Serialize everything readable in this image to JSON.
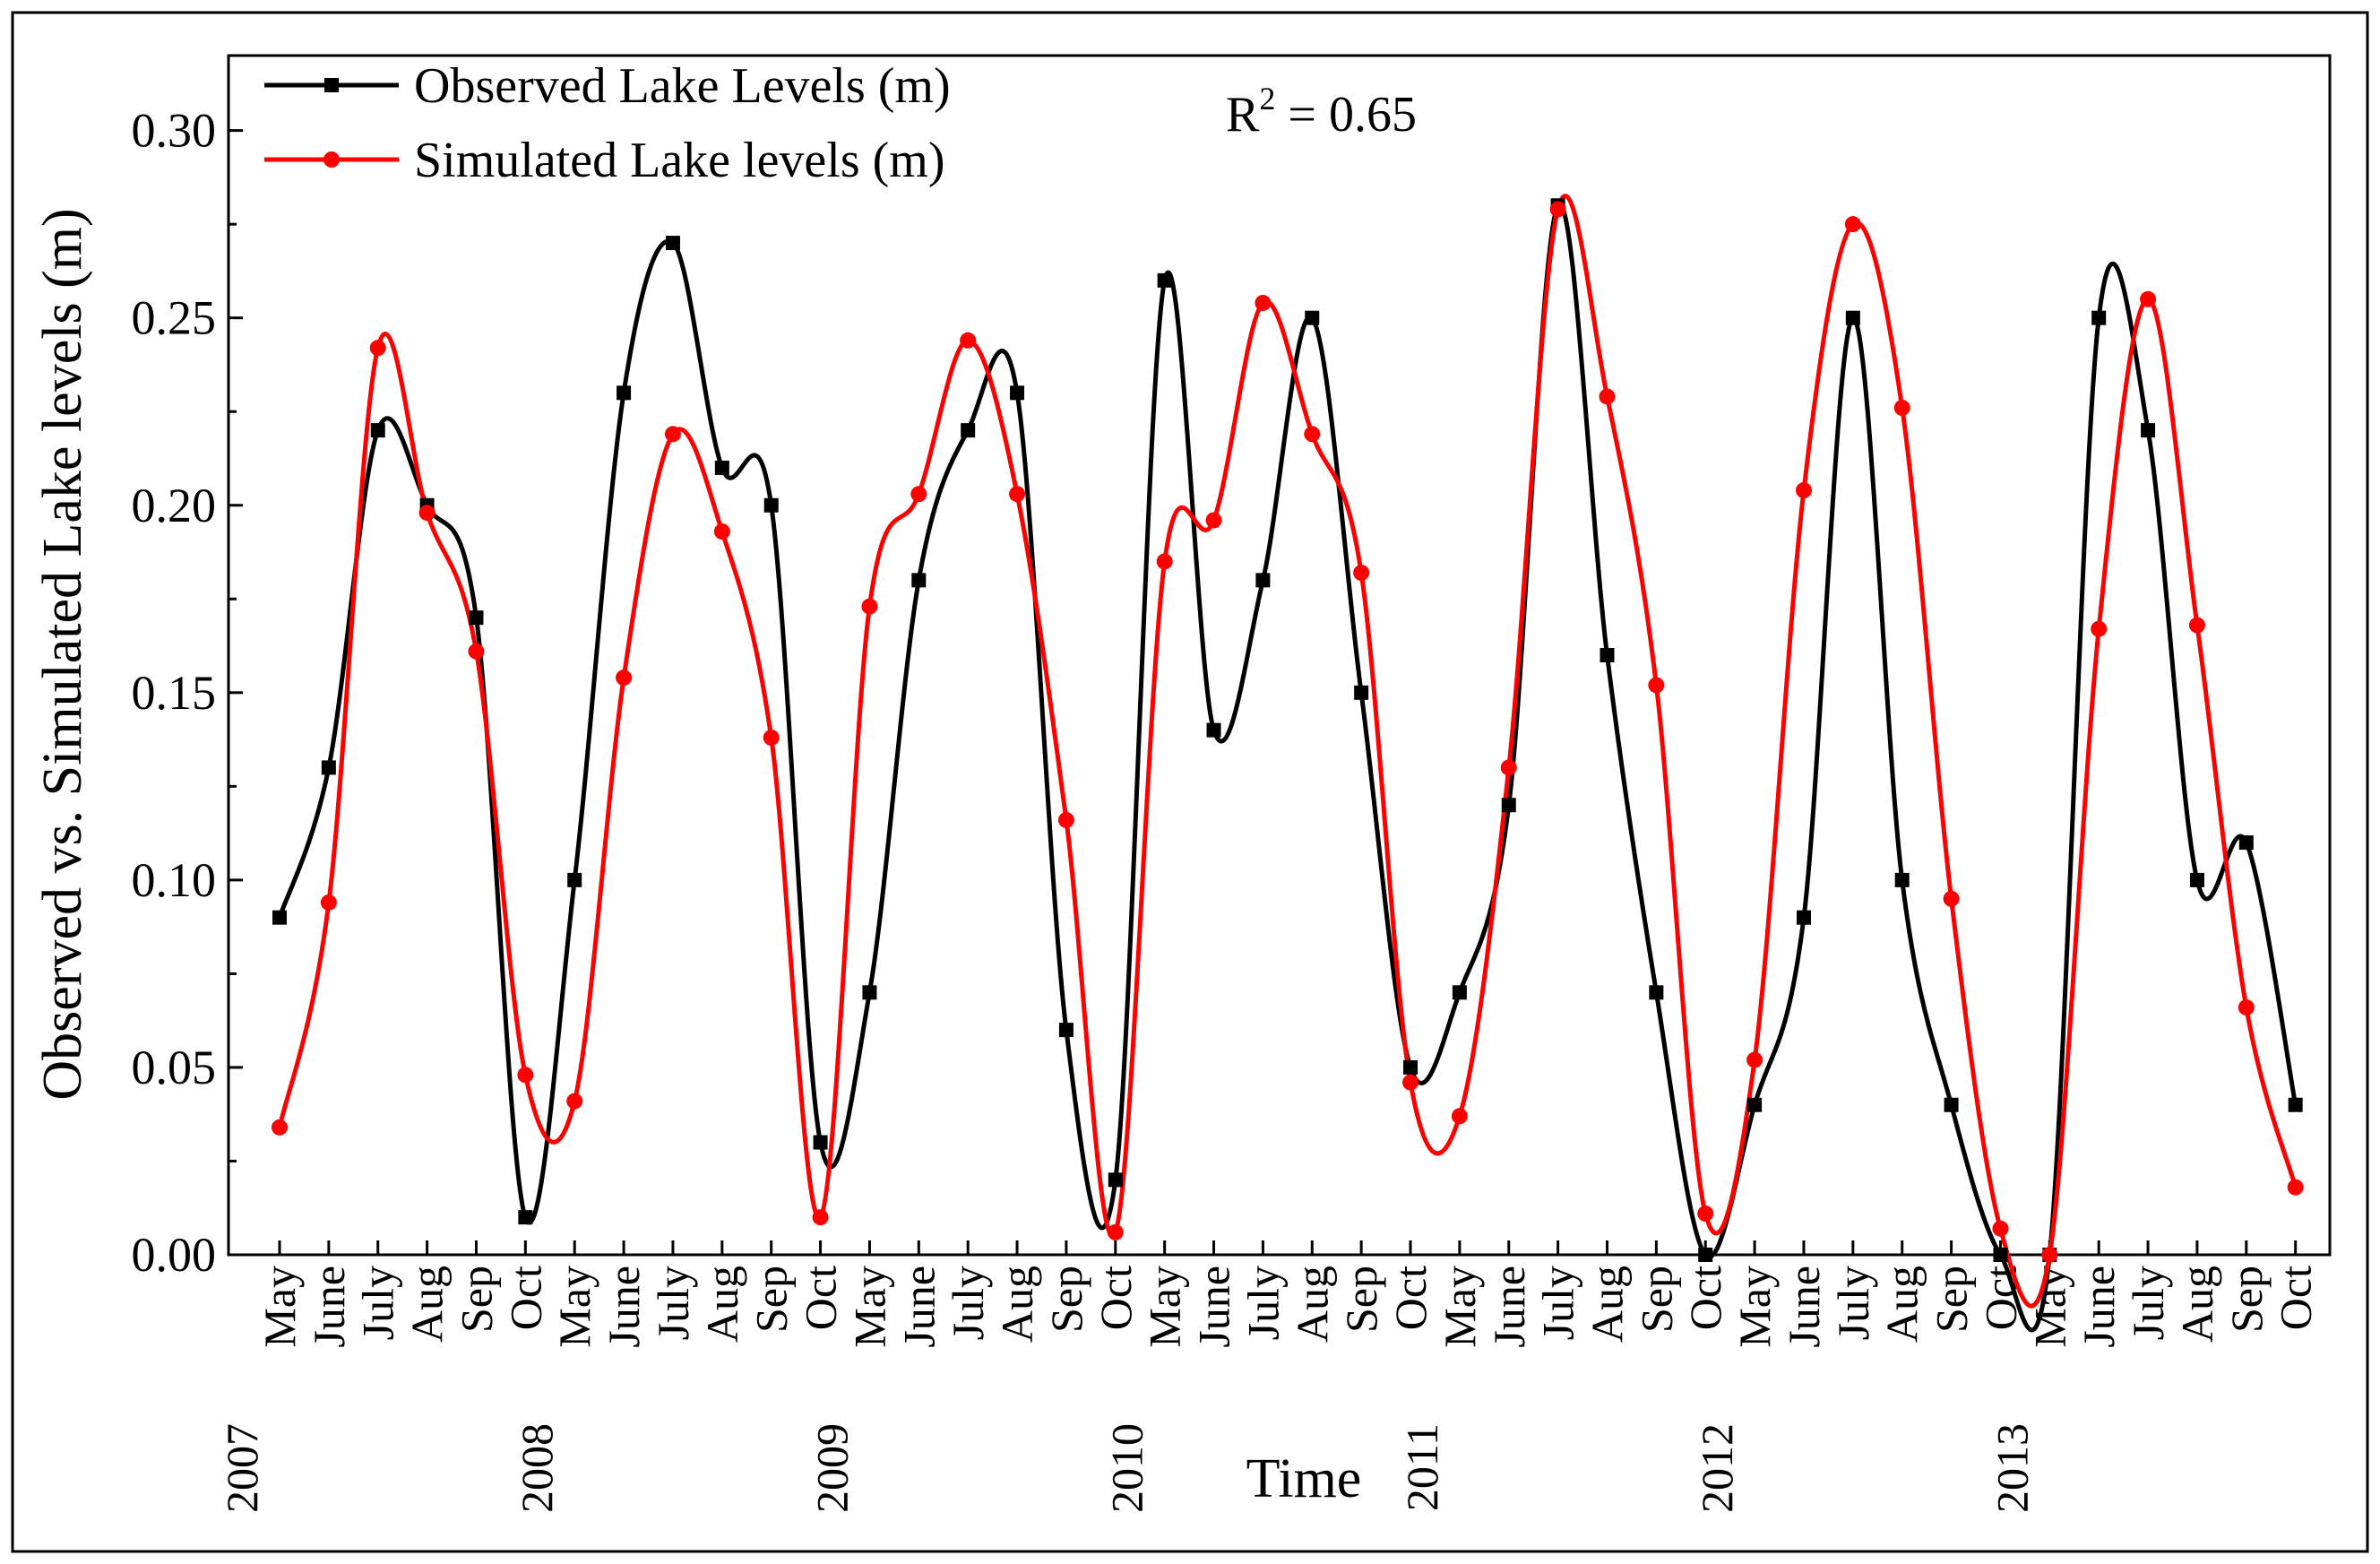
{
  "chart_data": {
    "type": "line",
    "title": "",
    "xlabel": "Time",
    "ylabel": "Observed vs. Simulated Lake levels (m)",
    "ylim": [
      0,
      0.32
    ],
    "yticks": [
      "0.00",
      "0.05",
      "0.10",
      "0.15",
      "0.20",
      "0.25",
      "0.30"
    ],
    "ytick_values": [
      0,
      0.05,
      0.1,
      0.15,
      0.2,
      0.25,
      0.3
    ],
    "categories": [
      "May",
      "June",
      "July",
      "Aug",
      "Sep",
      "Oct",
      "May",
      "June",
      "July",
      "Aug",
      "Sep",
      "Oct",
      "May",
      "June",
      "July",
      "Aug",
      "Sep",
      "Oct",
      "May",
      "June",
      "July",
      "Aug",
      "Sep",
      "Oct",
      "May",
      "June",
      "July",
      "Aug",
      "Sep",
      "Oct",
      "May",
      "June",
      "July",
      "Aug",
      "Sep",
      "Oct",
      "May",
      "June",
      "July",
      "Aug",
      "Sep",
      "Oct"
    ],
    "years": [
      {
        "label": "2007",
        "index": 0
      },
      {
        "label": "2008",
        "index": 6
      },
      {
        "label": "2009",
        "index": 12
      },
      {
        "label": "2010",
        "index": 18
      },
      {
        "label": "2011",
        "index": 24
      },
      {
        "label": "2012",
        "index": 30
      },
      {
        "label": "2013",
        "index": 36
      }
    ],
    "annotation": {
      "text_main": "R",
      "superscript": "2",
      "text_rest": " = 0.65"
    },
    "legend_position": "top-left",
    "series": [
      {
        "name": "Observed Lake Levels (m)",
        "color": "#000000",
        "marker": "square",
        "values": [
          0.09,
          0.13,
          0.22,
          0.2,
          0.17,
          0.01,
          0.1,
          0.23,
          0.27,
          0.21,
          0.2,
          0.03,
          0.07,
          0.18,
          0.22,
          0.23,
          0.06,
          0.02,
          0.26,
          0.14,
          0.18,
          0.25,
          0.15,
          0.05,
          0.07,
          0.12,
          0.28,
          0.16,
          0.07,
          0.0,
          0.04,
          0.09,
          0.25,
          0.1,
          0.04,
          0.0,
          0.0,
          0.25,
          0.22,
          0.1,
          0.11,
          0.04
        ]
      },
      {
        "name": "Simulated Lake levels (m)",
        "color": "#ff0000",
        "marker": "circle",
        "values": [
          0.034,
          0.094,
          0.242,
          0.198,
          0.161,
          0.048,
          0.041,
          0.154,
          0.219,
          0.193,
          0.138,
          0.01,
          0.173,
          0.203,
          0.244,
          0.203,
          0.116,
          0.006,
          0.185,
          0.196,
          0.254,
          0.219,
          0.182,
          0.046,
          0.037,
          0.13,
          0.279,
          0.229,
          0.152,
          0.011,
          0.052,
          0.204,
          0.275,
          0.226,
          0.095,
          0.007,
          0.0,
          0.167,
          0.255,
          0.168,
          0.066,
          0.018
        ]
      }
    ]
  }
}
